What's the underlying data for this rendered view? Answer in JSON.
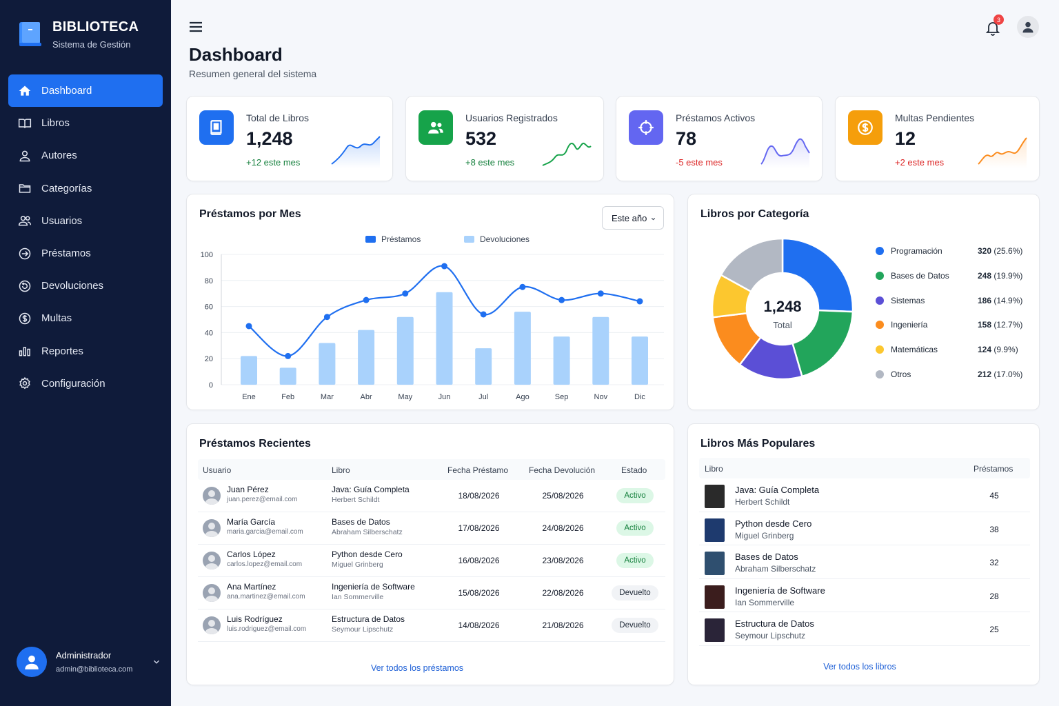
{
  "brand": {
    "title": "BIBLIOTECA",
    "subtitle": "Sistema de Gestión"
  },
  "nav": [
    {
      "label": "Dashboard",
      "icon": "home-icon",
      "active": true
    },
    {
      "label": "Libros",
      "icon": "book-open-icon"
    },
    {
      "label": "Autores",
      "icon": "user-icon"
    },
    {
      "label": "Categorías",
      "icon": "folder-icon"
    },
    {
      "label": "Usuarios",
      "icon": "users-icon"
    },
    {
      "label": "Préstamos",
      "icon": "arrow-circle-icon"
    },
    {
      "label": "Devoluciones",
      "icon": "return-icon"
    },
    {
      "label": "Multas",
      "icon": "dollar-circle-icon"
    },
    {
      "label": "Reportes",
      "icon": "bar-chart-icon"
    },
    {
      "label": "Configuración",
      "icon": "gear-icon"
    }
  ],
  "user": {
    "name": "Administrador",
    "email": "admin@biblioteca.com"
  },
  "header": {
    "title": "Dashboard",
    "subtitle": "Resumen general del sistema",
    "notifications": "3"
  },
  "stats": [
    {
      "label": "Total de Libros",
      "value": "1,248",
      "delta": "+12 este mes",
      "color": "#1f6ff0",
      "delta_color": "#15803d"
    },
    {
      "label": "Usuarios Registrados",
      "value": "532",
      "delta": "+8 este mes",
      "color": "#16a34a",
      "delta_color": "#15803d"
    },
    {
      "label": "Préstamos Activos",
      "value": "78",
      "delta": "-5 este mes",
      "color": "#6366f1",
      "delta_color": "#dc2626"
    },
    {
      "label": "Multas Pendientes",
      "value": "12",
      "delta": "+2 este mes",
      "color": "#f59e0b",
      "delta_color": "#dc2626"
    }
  ],
  "loans_chart": {
    "title": "Préstamos por Mes",
    "filter": "Este año",
    "legend": {
      "loans": "Préstamos",
      "returns": "Devoluciones"
    }
  },
  "chart_data": {
    "type": "bar",
    "categories": [
      "Ene",
      "Feb",
      "Mar",
      "Abr",
      "May",
      "Jun",
      "Jul",
      "Ago",
      "Sep",
      "Nov",
      "Dic"
    ],
    "series": [
      {
        "name": "Préstamos",
        "type": "line",
        "values": [
          45,
          22,
          52,
          65,
          70,
          91,
          54,
          75,
          65,
          70,
          64
        ]
      },
      {
        "name": "Devoluciones",
        "type": "bar",
        "values": [
          22,
          13,
          32,
          42,
          52,
          71,
          28,
          56,
          37,
          52,
          37
        ]
      }
    ],
    "yticks": [
      "0",
      "20",
      "40",
      "60",
      "80",
      "100"
    ],
    "ylim": [
      0,
      100
    ],
    "grid": true,
    "legend_position": "top"
  },
  "category_chart": {
    "title": "Libros por Categoría",
    "center_value": "1,248",
    "center_label": "Total",
    "items": [
      {
        "name": "Programación",
        "count": "320",
        "pct": "(25.6%)",
        "value": 320,
        "color": "#1f6ff0"
      },
      {
        "name": "Bases de Datos",
        "count": "248",
        "pct": "(19.9%)",
        "value": 248,
        "color": "#22a55b"
      },
      {
        "name": "Sistemas",
        "count": "186",
        "pct": "(14.9%)",
        "value": 186,
        "color": "#5b4fd6"
      },
      {
        "name": "Ingeniería",
        "count": "158",
        "pct": "(12.7%)",
        "value": 158,
        "color": "#fb8c1e"
      },
      {
        "name": "Matemáticas",
        "count": "124",
        "pct": "(9.9%)",
        "value": 124,
        "color": "#fcc72f"
      },
      {
        "name": "Otros",
        "count": "212",
        "pct": "(17.0%)",
        "value": 212,
        "color": "#b2b8c3"
      }
    ]
  },
  "recent": {
    "title": "Préstamos Recientes",
    "columns": [
      "Usuario",
      "Libro",
      "Fecha Préstamo",
      "Fecha Devolución",
      "Estado"
    ],
    "rows": [
      {
        "user": "Juan Pérez",
        "email": "juan.perez@email.com",
        "book": "Java: Guía Completa",
        "author": "Herbert Schildt",
        "loan": "18/08/2026",
        "ret": "25/08/2026",
        "status": "Activo"
      },
      {
        "user": "María García",
        "email": "maria.garcia@email.com",
        "book": "Bases de Datos",
        "author": "Abraham Silberschatz",
        "loan": "17/08/2026",
        "ret": "24/08/2026",
        "status": "Activo"
      },
      {
        "user": "Carlos López",
        "email": "carlos.lopez@email.com",
        "book": "Python desde Cero",
        "author": "Miguel Grinberg",
        "loan": "16/08/2026",
        "ret": "23/08/2026",
        "status": "Activo"
      },
      {
        "user": "Ana Martínez",
        "email": "ana.martinez@email.com",
        "book": "Ingeniería de Software",
        "author": "Ian Sommerville",
        "loan": "15/08/2026",
        "ret": "22/08/2026",
        "status": "Devuelto"
      },
      {
        "user": "Luis Rodríguez",
        "email": "luis.rodriguez@email.com",
        "book": "Estructura de Datos",
        "author": "Seymour Lipschutz",
        "loan": "14/08/2026",
        "ret": "21/08/2026",
        "status": "Devuelto"
      }
    ],
    "link": "Ver todos los préstamos"
  },
  "popular": {
    "title": "Libros Más Populares",
    "columns": [
      "Libro",
      "Préstamos"
    ],
    "rows": [
      {
        "title": "Java: Guía Completa",
        "author": "Herbert Schildt",
        "count": "45",
        "cover": "#2a2a2a"
      },
      {
        "title": "Python desde Cero",
        "author": "Miguel Grinberg",
        "count": "38",
        "cover": "#1e3a6e"
      },
      {
        "title": "Bases de Datos",
        "author": "Abraham Silberschatz",
        "count": "32",
        "cover": "#2f4f6f"
      },
      {
        "title": "Ingeniería de Software",
        "author": "Ian Sommerville",
        "count": "28",
        "cover": "#3b1d1d"
      },
      {
        "title": "Estructura de Datos",
        "author": "Seymour Lipschutz",
        "count": "25",
        "cover": "#2a2438"
      }
    ],
    "link": "Ver todos los libros"
  }
}
